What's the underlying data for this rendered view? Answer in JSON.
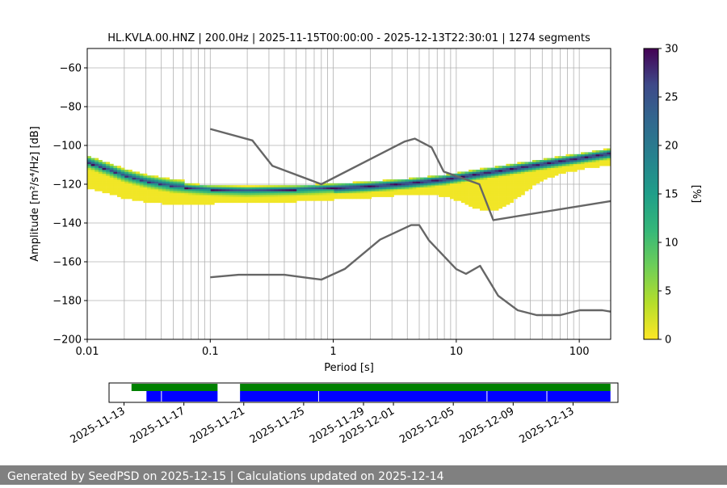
{
  "chart_data": [
    {
      "type": "heatmap",
      "title": "HL.KVLA.00.HNZ | 200.0Hz | 2025-11-15T00:00:00 - 2025-12-13T22:30:01 | 1274 segments",
      "xlabel": "Period [s]",
      "ylabel": "Amplitude [m²/s⁴/Hz] [dB]",
      "xscale": "log",
      "xlim": [
        0.01,
        180
      ],
      "ylim": [
        -200,
        -50
      ],
      "xticks": [
        0.01,
        0.1,
        1,
        10,
        100
      ],
      "xtick_labels": [
        "0.01",
        "0.1",
        "1",
        "10",
        "100"
      ],
      "yticks": [
        -200,
        -180,
        -160,
        -140,
        -120,
        -100,
        -80,
        -60
      ],
      "ytick_labels": [
        "−200",
        "−180",
        "−160",
        "−140",
        "−120",
        "−100",
        "−80",
        "−60"
      ],
      "grid": true,
      "colorbar": {
        "label": "[%]",
        "range": [
          0,
          30
        ],
        "ticks": [
          0,
          5,
          10,
          15,
          20,
          25,
          30
        ],
        "colormap": "viridis_r"
      },
      "mode_curve": [
        [
          0.01,
          -109
        ],
        [
          0.015,
          -113
        ],
        [
          0.02,
          -116
        ],
        [
          0.03,
          -119
        ],
        [
          0.05,
          -121.5
        ],
        [
          0.1,
          -123
        ],
        [
          0.2,
          -123.5
        ],
        [
          0.5,
          -123
        ],
        [
          1,
          -122
        ],
        [
          2,
          -121
        ],
        [
          4,
          -119.5
        ],
        [
          8,
          -117.5
        ],
        [
          10,
          -116.5
        ],
        [
          20,
          -113.5
        ],
        [
          40,
          -110.5
        ],
        [
          80,
          -107.5
        ],
        [
          180,
          -104
        ]
      ],
      "noise_models": [
        {
          "name": "NHNM",
          "points": [
            [
              0.1,
              -91.5
            ],
            [
              0.22,
              -97.4
            ],
            [
              0.32,
              -110.5
            ],
            [
              0.8,
              -120
            ],
            [
              3.8,
              -98
            ],
            [
              4.6,
              -96.5
            ],
            [
              6.3,
              -101
            ],
            [
              7.9,
              -113.5
            ],
            [
              15.4,
              -120
            ],
            [
              20,
              -138.5
            ],
            [
              180,
              -128.7
            ]
          ]
        },
        {
          "name": "NLNM",
          "points": [
            [
              0.1,
              -168
            ],
            [
              0.17,
              -166.7
            ],
            [
              0.4,
              -166.7
            ],
            [
              0.8,
              -169.2
            ],
            [
              1.24,
              -163.7
            ],
            [
              2.4,
              -148.6
            ],
            [
              4.3,
              -141.1
            ],
            [
              5,
              -141.1
            ],
            [
              6,
              -149
            ],
            [
              10,
              -163.8
            ],
            [
              12,
              -166.2
            ],
            [
              15.6,
              -162.1
            ],
            [
              21.9,
              -177.5
            ],
            [
              31.6,
              -185
            ],
            [
              45,
              -187.5
            ],
            [
              70,
              -187.5
            ],
            [
              101,
              -185
            ],
            [
              154,
              -185
            ],
            [
              180,
              -185.7
            ]
          ]
        }
      ]
    },
    {
      "type": "timeline",
      "xlim": [
        "2025-11-12",
        "2025-12-16"
      ],
      "xtick_labels": [
        "2025-11-13",
        "2025-11-17",
        "2025-11-21",
        "2025-11-25",
        "2025-11-29",
        "2025-12-01",
        "2025-12-05",
        "2025-12-09",
        "2025-12-13"
      ],
      "data_available": [
        [
          "2025-11-13 12:00",
          "2025-11-19 06:00"
        ],
        [
          "2025-11-20 18:00",
          "2025-12-15 12:00"
        ]
      ],
      "psd_used": [
        [
          "2025-11-14 12:00",
          "2025-11-19 06:00"
        ],
        [
          "2025-11-20 18:00",
          "2025-12-15 12:00"
        ]
      ],
      "colors": {
        "available": "#008000",
        "used": "#0000ff"
      }
    }
  ],
  "footer": {
    "text": "Generated by SeedPSD on 2025-12-15 | Calculations updated on 2025-12-14"
  }
}
